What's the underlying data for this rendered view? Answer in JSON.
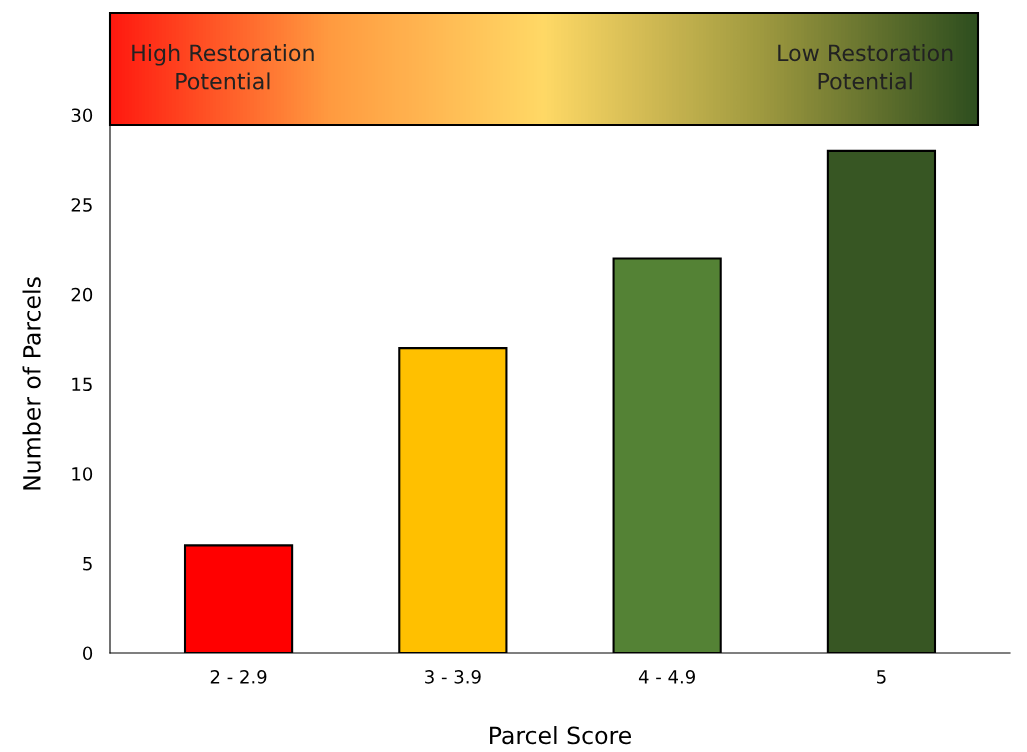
{
  "chart_data": {
    "type": "bar",
    "xlabel": "Parcel Score",
    "ylabel": "Number of Parcels",
    "categories": [
      "2 - 2.9",
      "3 - 3.9",
      "4 - 4.9",
      "5"
    ],
    "values": [
      6,
      17,
      22,
      28
    ],
    "colors": [
      "#ff0000",
      "#ffc000",
      "#548235",
      "#375623"
    ],
    "ylim": [
      0,
      30
    ],
    "yticks": [
      0,
      5,
      10,
      15,
      20,
      25,
      30
    ],
    "grid": false,
    "annotations": [
      "High Restoration\nPotential",
      "Low Restoration\nPotential"
    ]
  }
}
